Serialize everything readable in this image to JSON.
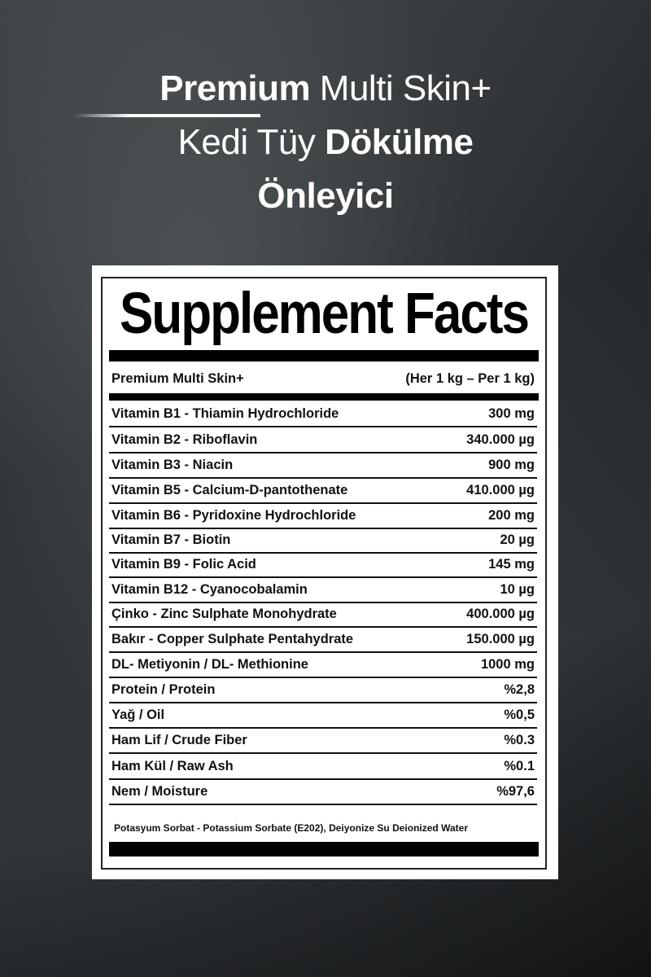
{
  "headline": {
    "line1_bold": "Premium",
    "line1_rest": " Multi Skin+",
    "line2_rest": "Kedi Tüy ",
    "line2_bold": "Dökülme",
    "line3_bold": "Önleyici"
  },
  "label": {
    "title": "Supplement Facts",
    "product": "Premium Multi Skin+",
    "serving": "(Her 1 kg – Per 1 kg)",
    "rows": [
      {
        "name": "Vitamin B1 - Thiamin Hydrochloride",
        "amount": "300 mg"
      },
      {
        "name": "Vitamin B2 - Riboflavin",
        "amount": "340.000 µg"
      },
      {
        "name": "Vitamin B3 - Niacin",
        "amount": "900 mg"
      },
      {
        "name": "Vitamin B5 - Calcium-D-pantothenate",
        "amount": "410.000 µg"
      },
      {
        "name": "Vitamin B6 - Pyridoxine Hydrochloride",
        "amount": "200 mg"
      },
      {
        "name": "Vitamin B7 - Biotin",
        "amount": "20 µg"
      },
      {
        "name": "Vitamin B9 - Folic Acid",
        "amount": "145 mg"
      },
      {
        "name": "Vitamin B12 - Cyanocobalamin",
        "amount": "10 µg"
      },
      {
        "name": "Çinko - Zinc Sulphate Monohydrate",
        "amount": "400.000 µg"
      },
      {
        "name": "Bakır - Copper Sulphate Pentahydrate",
        "amount": "150.000 µg"
      },
      {
        "name": "DL- Metiyonin / DL- Methionine",
        "amount": "1000 mg"
      },
      {
        "name": "Protein / Protein",
        "amount": "%2,8"
      },
      {
        "name": "Yağ / Oil",
        "amount": "%0,5"
      },
      {
        "name": "Ham Lif / Crude Fiber",
        "amount": "%0.3"
      },
      {
        "name": "Ham Kül / Raw Ash",
        "amount": "%0.1"
      },
      {
        "name": "Nem / Moisture",
        "amount": "%97,6"
      }
    ],
    "ingredients": "Potasyum Sorbat - Potassium Sorbate (E202),  Deiyonize Su  Deionized Water"
  }
}
